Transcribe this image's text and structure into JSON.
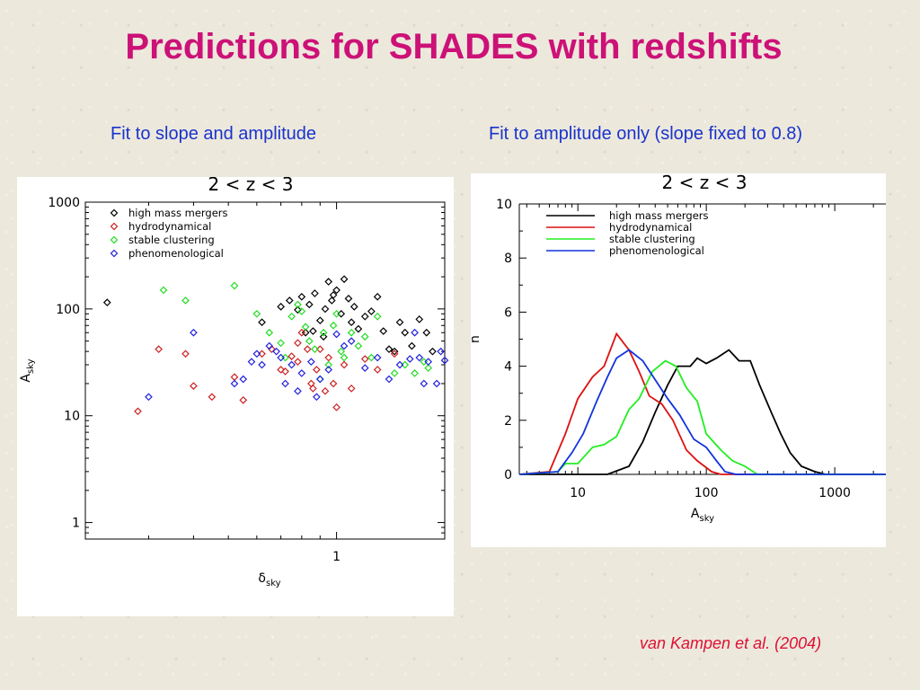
{
  "slide": {
    "title": "Predictions for SHADES with redshifts",
    "subtitle_left": "Fit to slope and amplitude",
    "subtitle_right": "Fit to amplitude only (slope fixed to 0.8)",
    "citation": "van Kampen et al. (2004)"
  },
  "chart_data": [
    {
      "type": "scatter",
      "title": "2 < z < 3",
      "xlabel": "δ",
      "xlabel_sub": "sky",
      "ylabel": "A",
      "ylabel_sub": "sky",
      "xscale": "log",
      "yscale": "log",
      "xlim": [
        0.2,
        2.0
      ],
      "ylim": [
        0.7,
        1000
      ],
      "x_ticks": [
        {
          "value": 1,
          "label": "1"
        }
      ],
      "y_ticks": [
        {
          "value": 1,
          "label": "1"
        },
        {
          "value": 10,
          "label": "10"
        },
        {
          "value": 100,
          "label": "100"
        },
        {
          "value": 1000,
          "label": "1000"
        }
      ],
      "legend_position": "top-left",
      "marker": "diamond",
      "series": [
        {
          "name": "high mass mergers",
          "color": "#000000",
          "points": [
            [
              0.23,
              115
            ],
            [
              0.62,
              75
            ],
            [
              0.7,
              105
            ],
            [
              0.74,
              120
            ],
            [
              0.78,
              98
            ],
            [
              0.8,
              130
            ],
            [
              0.82,
              60
            ],
            [
              0.84,
              110
            ],
            [
              0.87,
              140
            ],
            [
              0.9,
              78
            ],
            [
              0.92,
              55
            ],
            [
              0.95,
              180
            ],
            [
              0.97,
              120
            ],
            [
              1.0,
              150
            ],
            [
              1.03,
              90
            ],
            [
              1.05,
              190
            ],
            [
              1.08,
              125
            ],
            [
              1.1,
              75
            ],
            [
              1.12,
              105
            ],
            [
              1.15,
              65
            ],
            [
              1.2,
              85
            ],
            [
              1.25,
              95
            ],
            [
              1.3,
              130
            ],
            [
              1.35,
              62
            ],
            [
              1.4,
              42
            ],
            [
              1.5,
              75
            ],
            [
              1.55,
              60
            ],
            [
              1.62,
              45
            ],
            [
              1.7,
              80
            ],
            [
              1.78,
              60
            ],
            [
              1.85,
              40
            ],
            [
              0.98,
              135
            ],
            [
              0.93,
              100
            ],
            [
              0.86,
              62
            ],
            [
              1.45,
              40
            ]
          ]
        },
        {
          "name": "hydrodynamical",
          "color": "#cc2222",
          "points": [
            [
              0.28,
              11
            ],
            [
              0.32,
              42
            ],
            [
              0.38,
              38
            ],
            [
              0.4,
              19
            ],
            [
              0.45,
              15
            ],
            [
              0.52,
              23
            ],
            [
              0.55,
              14
            ],
            [
              0.62,
              38
            ],
            [
              0.66,
              42
            ],
            [
              0.7,
              27
            ],
            [
              0.72,
              26
            ],
            [
              0.75,
              36
            ],
            [
              0.78,
              48
            ],
            [
              0.8,
              60
            ],
            [
              0.83,
              42
            ],
            [
              0.86,
              18
            ],
            [
              0.88,
              27
            ],
            [
              0.9,
              42
            ],
            [
              0.93,
              17
            ],
            [
              0.95,
              35
            ],
            [
              0.98,
              20
            ],
            [
              1.0,
              12
            ],
            [
              1.05,
              30
            ],
            [
              1.1,
              18
            ],
            [
              1.2,
              34
            ],
            [
              1.3,
              27
            ],
            [
              1.45,
              38
            ],
            [
              0.85,
              20
            ],
            [
              0.78,
              32
            ]
          ]
        },
        {
          "name": "stable clustering",
          "color": "#22dd22",
          "points": [
            [
              0.33,
              150
            ],
            [
              0.38,
              120
            ],
            [
              0.52,
              165
            ],
            [
              0.6,
              90
            ],
            [
              0.65,
              60
            ],
            [
              0.7,
              48
            ],
            [
              0.72,
              35
            ],
            [
              0.75,
              85
            ],
            [
              0.78,
              110
            ],
            [
              0.8,
              95
            ],
            [
              0.82,
              68
            ],
            [
              0.84,
              50
            ],
            [
              0.87,
              42
            ],
            [
              0.9,
              22
            ],
            [
              0.92,
              60
            ],
            [
              0.95,
              30
            ],
            [
              1.0,
              90
            ],
            [
              1.03,
              40
            ],
            [
              1.05,
              35
            ],
            [
              1.1,
              60
            ],
            [
              1.15,
              45
            ],
            [
              1.2,
              55
            ],
            [
              1.25,
              35
            ],
            [
              1.3,
              85
            ],
            [
              1.45,
              25
            ],
            [
              1.55,
              30
            ],
            [
              1.65,
              25
            ],
            [
              1.75,
              32
            ],
            [
              1.8,
              28
            ],
            [
              0.98,
              70
            ]
          ]
        },
        {
          "name": "phenomenological",
          "color": "#2222dd",
          "points": [
            [
              0.3,
              15
            ],
            [
              0.4,
              60
            ],
            [
              0.52,
              20
            ],
            [
              0.55,
              22
            ],
            [
              0.58,
              32
            ],
            [
              0.6,
              38
            ],
            [
              0.62,
              30
            ],
            [
              0.65,
              45
            ],
            [
              0.68,
              40
            ],
            [
              0.7,
              35
            ],
            [
              0.72,
              20
            ],
            [
              0.75,
              30
            ],
            [
              0.78,
              17
            ],
            [
              0.8,
              25
            ],
            [
              0.85,
              32
            ],
            [
              0.88,
              15
            ],
            [
              0.9,
              22
            ],
            [
              0.95,
              27
            ],
            [
              1.0,
              58
            ],
            [
              1.05,
              45
            ],
            [
              1.1,
              50
            ],
            [
              1.2,
              28
            ],
            [
              1.3,
              35
            ],
            [
              1.4,
              22
            ],
            [
              1.5,
              30
            ],
            [
              1.6,
              34
            ],
            [
              1.7,
              35
            ],
            [
              1.8,
              32
            ],
            [
              1.9,
              20
            ],
            [
              1.95,
              40
            ],
            [
              2.0,
              33
            ],
            [
              1.65,
              60
            ],
            [
              1.75,
              20
            ]
          ]
        }
      ]
    },
    {
      "type": "line",
      "title": "2 < z < 3",
      "xlabel": "A",
      "xlabel_sub": "sky",
      "ylabel": "n",
      "xscale": "log",
      "xlim": [
        3.5,
        2500
      ],
      "ylim": [
        0,
        10
      ],
      "x_ticks": [
        {
          "value": 10,
          "label": "10"
        },
        {
          "value": 100,
          "label": "100"
        },
        {
          "value": 1000,
          "label": "1000"
        }
      ],
      "y_ticks": [
        {
          "value": 0,
          "label": "0"
        },
        {
          "value": 2,
          "label": "2"
        },
        {
          "value": 4,
          "label": "4"
        },
        {
          "value": 6,
          "label": "6"
        },
        {
          "value": 8,
          "label": "8"
        },
        {
          "value": 10,
          "label": "10"
        }
      ],
      "legend_position": "top-left",
      "series": [
        {
          "name": "high mass mergers",
          "color": "#000000",
          "points": [
            [
              3.5,
              0
            ],
            [
              17,
              0
            ],
            [
              25,
              0.3
            ],
            [
              32,
              1.2
            ],
            [
              40,
              2.3
            ],
            [
              50,
              3.3
            ],
            [
              60,
              4
            ],
            [
              75,
              4
            ],
            [
              85,
              4.3
            ],
            [
              100,
              4.1
            ],
            [
              120,
              4.3
            ],
            [
              150,
              4.6
            ],
            [
              180,
              4.2
            ],
            [
              220,
              4.2
            ],
            [
              260,
              3.3
            ],
            [
              320,
              2.3
            ],
            [
              380,
              1.5
            ],
            [
              450,
              0.8
            ],
            [
              550,
              0.3
            ],
            [
              700,
              0.1
            ],
            [
              850,
              0
            ],
            [
              2500,
              0
            ]
          ]
        },
        {
          "name": "hydrodynamical",
          "color": "#dd1111",
          "points": [
            [
              3.5,
              0
            ],
            [
              6,
              0.1
            ],
            [
              8,
              1.5
            ],
            [
              10,
              2.8
            ],
            [
              13,
              3.6
            ],
            [
              16,
              4
            ],
            [
              20,
              5.2
            ],
            [
              25,
              4.6
            ],
            [
              30,
              3.8
            ],
            [
              36,
              2.9
            ],
            [
              45,
              2.6
            ],
            [
              55,
              2
            ],
            [
              70,
              0.9
            ],
            [
              85,
              0.5
            ],
            [
              110,
              0.1
            ],
            [
              130,
              0
            ],
            [
              2500,
              0
            ]
          ]
        },
        {
          "name": "stable clustering",
          "color": "#22ee22",
          "points": [
            [
              3.5,
              0
            ],
            [
              7,
              0.1
            ],
            [
              8,
              0.4
            ],
            [
              10,
              0.4
            ],
            [
              13,
              1
            ],
            [
              16,
              1.1
            ],
            [
              20,
              1.4
            ],
            [
              25,
              2.4
            ],
            [
              30,
              2.8
            ],
            [
              38,
              3.8
            ],
            [
              48,
              4.2
            ],
            [
              58,
              4
            ],
            [
              70,
              3.2
            ],
            [
              85,
              2.7
            ],
            [
              100,
              1.5
            ],
            [
              130,
              0.9
            ],
            [
              160,
              0.5
            ],
            [
              200,
              0.3
            ],
            [
              250,
              0
            ],
            [
              2500,
              0
            ]
          ]
        },
        {
          "name": "phenomenological",
          "color": "#1133dd",
          "points": [
            [
              3.5,
              0
            ],
            [
              7,
              0.1
            ],
            [
              9,
              0.8
            ],
            [
              11,
              1.5
            ],
            [
              14,
              2.7
            ],
            [
              17,
              3.6
            ],
            [
              20,
              4.3
            ],
            [
              25,
              4.6
            ],
            [
              32,
              4.2
            ],
            [
              40,
              3.5
            ],
            [
              50,
              2.8
            ],
            [
              62,
              2.2
            ],
            [
              80,
              1.3
            ],
            [
              100,
              1
            ],
            [
              120,
              0.5
            ],
            [
              140,
              0.1
            ],
            [
              170,
              0
            ],
            [
              2500,
              0
            ]
          ]
        }
      ]
    }
  ]
}
